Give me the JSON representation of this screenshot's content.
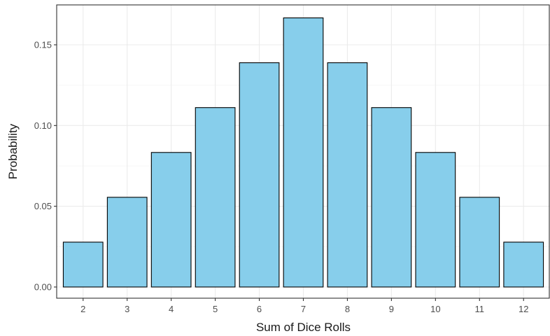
{
  "chart_data": {
    "type": "bar",
    "categories": [
      "2",
      "3",
      "4",
      "5",
      "6",
      "7",
      "8",
      "9",
      "10",
      "11",
      "12"
    ],
    "values": [
      0.02778,
      0.05556,
      0.08333,
      0.11111,
      0.13889,
      0.16667,
      0.13889,
      0.11111,
      0.08333,
      0.05556,
      0.02778
    ],
    "title": "",
    "xlabel": "Sum of Dice Rolls",
    "ylabel": "Probability",
    "ylim": [
      0,
      0.175
    ],
    "yticks": [
      0.0,
      0.05,
      0.1,
      0.15
    ],
    "ytick_labels": [
      "0.00",
      "0.05",
      "0.10",
      "0.15"
    ],
    "grid": true,
    "legend": "none",
    "colors": {
      "bar_fill": "#87CEEB",
      "bar_stroke": "#000000",
      "grid_major": "#ebebeb",
      "grid_minor": "#f5f5f5",
      "panel_border": "#333333"
    }
  }
}
